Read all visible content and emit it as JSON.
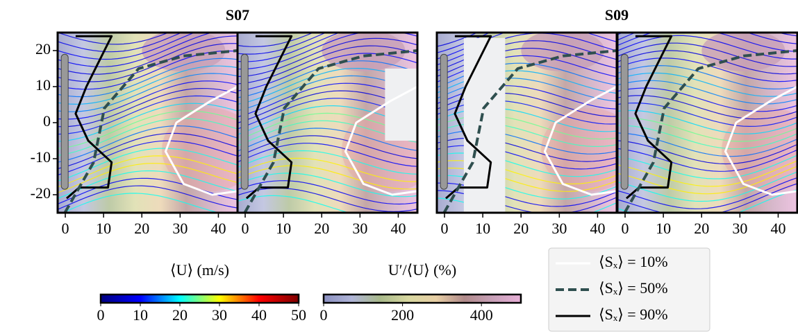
{
  "chart_data": [
    {
      "type": "streamline",
      "title": "S07",
      "xlim": [
        -2,
        45
      ],
      "ylim": [
        -25,
        25
      ],
      "xticks": [
        0,
        10,
        20,
        30,
        40
      ],
      "yticks": [
        -20,
        -10,
        0,
        10,
        20
      ]
    },
    {
      "type": "streamline",
      "xlim": [
        -2,
        45
      ],
      "ylim": [
        -25,
        25
      ],
      "xticks": [
        0,
        10,
        20,
        30,
        40
      ]
    },
    {
      "type": "streamline",
      "title": "S09",
      "xlim": [
        -2,
        45
      ],
      "ylim": [
        -25,
        25
      ],
      "xticks": [
        0,
        10,
        20,
        30,
        40
      ]
    },
    {
      "type": "streamline",
      "xlim": [
        -2,
        45
      ],
      "ylim": [
        -25,
        25
      ],
      "xticks": [
        0,
        10,
        20,
        30,
        40
      ]
    }
  ],
  "colorbars": [
    {
      "label": "⟨U⟩ (m/s)",
      "lim": [
        0,
        50
      ],
      "ticks": [
        0,
        10,
        20,
        30,
        40,
        50
      ],
      "colors": [
        "#00007f",
        "#0000ff",
        "#00ffff",
        "#ffff00",
        "#ff0000",
        "#7f0000"
      ]
    },
    {
      "label": "U′/⟨U⟩ (%)",
      "lim": [
        0,
        500
      ],
      "ticks": [
        0,
        200,
        400
      ],
      "colors": [
        "#8a8fc0",
        "#b0b5d8",
        "#a8b98a",
        "#d8d8a0",
        "#e8cfa5",
        "#b08a8a",
        "#c8a0b8",
        "#e8b0d8"
      ]
    }
  ],
  "legend": {
    "entries": [
      {
        "label": "⟨Sₓ⟩ = 10%",
        "level": 10,
        "color": "#ffffff",
        "dash": false,
        "width": 3
      },
      {
        "label": "⟨Sₓ⟩ = 50%",
        "level": 50,
        "color": "#2f4f4f",
        "dash": true,
        "width": 4
      },
      {
        "label": "⟨Sₓ⟩ = 90%",
        "level": 90,
        "color": "#000000",
        "dash": false,
        "width": 3
      }
    ]
  }
}
